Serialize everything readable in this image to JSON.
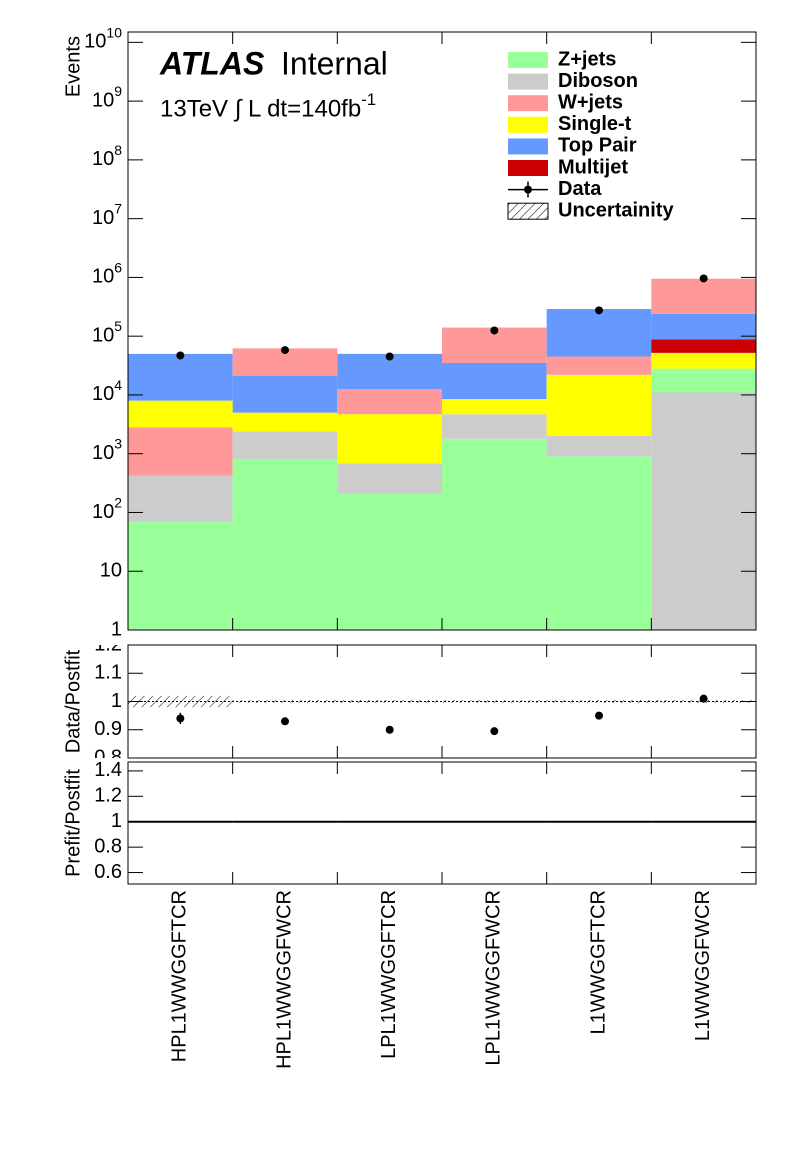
{
  "chart_data": [
    {
      "type": "bar",
      "stacked": true,
      "log_y": true,
      "title": "ATLAS",
      "subtitle": "Internal",
      "annotation": "13TeV ∫ L dt=140fb^-1",
      "y_label": "Events",
      "ylim": [
        1,
        15000000000
      ],
      "yticks": [
        1,
        10,
        {
          "value": 100,
          "label": "10^2"
        },
        {
          "value": 1000,
          "label": "10^3"
        },
        {
          "value": 10000,
          "label": "10^4"
        },
        {
          "value": 100000,
          "label": "10^5"
        },
        {
          "value": 1000000,
          "label": "10^6"
        },
        {
          "value": 10000000,
          "label": "10^7"
        },
        {
          "value": 100000000,
          "label": "10^8"
        },
        {
          "value": 1000000000,
          "label": "10^9"
        },
        {
          "value": 10000000000,
          "label": "10^10"
        }
      ],
      "legend": "upper right",
      "series": [
        {
          "name": "Z+jets",
          "color": "#99ff99",
          "values": [
            70,
            800,
            210,
            1800,
            900,
            17000
          ]
        },
        {
          "name": "Diboson",
          "color": "#cccccc",
          "values": [
            350,
            1600,
            470,
            2900,
            1100,
            11000
          ]
        },
        {
          "name": "W+jets",
          "color": "#ff9999",
          "values": [
            2380,
            41000,
            7800,
            105000,
            23000,
            710000
          ]
        },
        {
          "name": "Single-t",
          "color": "#ffff00",
          "values": [
            5200,
            2600,
            4020,
            3800,
            20000,
            24000
          ]
        },
        {
          "name": "Top Pair",
          "color": "#6699ff",
          "values": [
            42000,
            16000,
            37500,
            26500,
            245000,
            152000
          ]
        },
        {
          "name": "Multijet",
          "color": "#cc0000",
          "values": [
            0,
            0,
            0,
            0,
            0,
            36000
          ]
        }
      ],
      "data": {
        "name": "Data",
        "color": "#000000",
        "values": [
          47000,
          58000,
          45000,
          125000,
          275000,
          960000
        ]
      }
    },
    {
      "type": "errorbar",
      "y_label": "Data/Postfit",
      "ylim": [
        0.8,
        1.2
      ],
      "yticks": [
        0.8,
        0.9,
        1,
        1.1,
        1.2
      ],
      "values": [
        0.94,
        0.93,
        0.9,
        0.895,
        0.95,
        1.01
      ],
      "errors": [
        0.02,
        0.005,
        0.005,
        0.005,
        0.005,
        0.005
      ],
      "reference": 1,
      "band": {
        "name": "Uncertainity",
        "values": [
          0.02,
          0.005,
          0.005,
          0.005,
          0.005,
          0.005
        ]
      }
    },
    {
      "type": "line",
      "y_label": "Prefit/Postfit",
      "ylim": [
        0.51,
        1.47
      ],
      "yticks": [
        0.6,
        0.8,
        1,
        1.2,
        1.4
      ],
      "values": [
        1,
        1,
        1,
        1,
        1,
        1
      ],
      "color": "#000000",
      "categories": [
        "HPL1WWGGFTCR",
        "HPL1WWGGFWCR",
        "LPL1WWGGFTCR",
        "LPL1WWGGFWCR",
        "L1WWGGFTCR",
        "L1WWGGFWCR"
      ]
    }
  ]
}
